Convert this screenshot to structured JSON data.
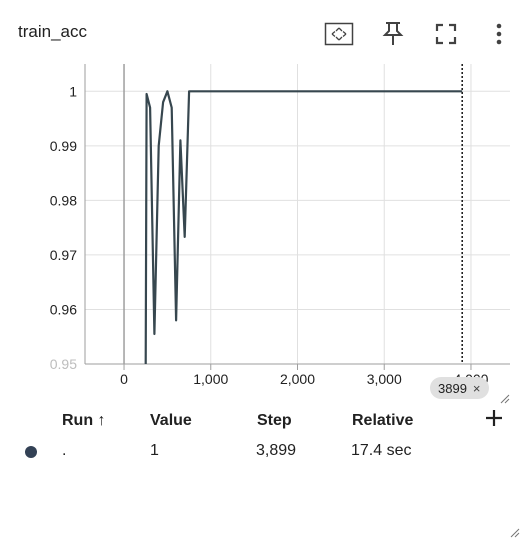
{
  "card": {
    "title": "train_acc"
  },
  "toolbar": {
    "fit_icon": "fit-to-domain-icon",
    "pin_icon": "pin-icon",
    "fullscreen_icon": "fullscreen-icon",
    "more_icon": "more-vert-icon"
  },
  "chart_data": {
    "type": "line",
    "title": "",
    "xlabel": "",
    "ylabel": "",
    "xlim": [
      -450,
      4450
    ],
    "ylim": [
      0.95,
      1.005
    ],
    "x_ticks": [
      0,
      1000,
      2000,
      3000,
      4000
    ],
    "x_tick_labels": [
      "0",
      "1,000",
      "2,000",
      "3,000",
      "4,000"
    ],
    "y_ticks": [
      0.95,
      0.96,
      0.97,
      0.98,
      0.99,
      1.0
    ],
    "y_tick_labels": [
      "0.95",
      "0.96",
      "0.97",
      "0.98",
      "0.99",
      "1"
    ],
    "series": [
      {
        "name": ".",
        "color": "#37474f",
        "x": [
          250,
          260,
          300,
          350,
          400,
          450,
          500,
          550,
          600,
          650,
          700,
          750,
          800,
          3899
        ],
        "y": [
          0.95,
          0.9995,
          0.997,
          0.9555,
          0.99,
          0.998,
          1.0,
          0.997,
          0.958,
          0.991,
          0.9733,
          1.0,
          1.0,
          1.0
        ]
      }
    ],
    "cursor_step": 3899,
    "grid": true
  },
  "step_badge": {
    "label": "3899",
    "close": "×"
  },
  "table": {
    "headers": {
      "run": "Run ↑",
      "value": "Value",
      "step": "Step",
      "relative": "Relative"
    },
    "rows": [
      {
        "run": ".",
        "value": "1",
        "step": "3,899",
        "relative": "17.4 sec",
        "color": "#334155"
      }
    ],
    "add_icon": "add-icon"
  }
}
